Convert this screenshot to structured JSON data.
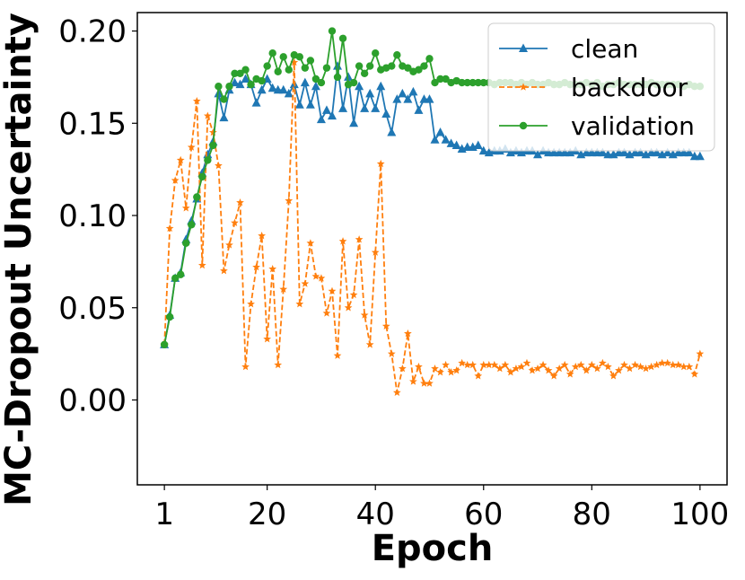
{
  "chart_data": {
    "type": "line",
    "xlabel": "Epoch",
    "ylabel": "MC-Dropout Uncertainty",
    "xlim": [
      -4,
      105
    ],
    "ylim": [
      -0.046,
      0.21
    ],
    "xticks": [
      1,
      20,
      40,
      60,
      80,
      100
    ],
    "xtick_labels": [
      "1",
      "20",
      "40",
      "60",
      "80",
      "100"
    ],
    "yticks": [
      0.0,
      0.05,
      0.1,
      0.15,
      0.2
    ],
    "ytick_labels": [
      "0.00",
      "0.05",
      "0.10",
      "0.15",
      "0.20"
    ],
    "grid": false,
    "legend_position": "upper right",
    "x": [
      1,
      2,
      3,
      4,
      5,
      6,
      7,
      8,
      9,
      10,
      11,
      12,
      13,
      14,
      15,
      16,
      17,
      18,
      19,
      20,
      21,
      22,
      23,
      24,
      25,
      26,
      27,
      28,
      29,
      30,
      31,
      32,
      33,
      34,
      35,
      36,
      37,
      38,
      39,
      40,
      41,
      42,
      43,
      44,
      45,
      46,
      47,
      48,
      49,
      50,
      51,
      52,
      53,
      54,
      55,
      56,
      57,
      58,
      59,
      60,
      61,
      62,
      63,
      64,
      65,
      66,
      67,
      68,
      69,
      70,
      71,
      72,
      73,
      74,
      75,
      76,
      77,
      78,
      79,
      80,
      81,
      82,
      83,
      84,
      85,
      86,
      87,
      88,
      89,
      90,
      91,
      92,
      93,
      94,
      95,
      96,
      97,
      98,
      99,
      100
    ],
    "series": [
      {
        "name": "clean",
        "color": "#1f77b4",
        "marker": "triangle",
        "dash": "solid",
        "values": [
          0.03,
          0.046,
          0.066,
          0.069,
          0.087,
          0.097,
          0.109,
          0.123,
          0.133,
          0.14,
          0.166,
          0.153,
          0.168,
          0.172,
          0.171,
          0.174,
          0.171,
          0.161,
          0.168,
          0.174,
          0.169,
          0.168,
          0.168,
          0.166,
          0.171,
          0.16,
          0.172,
          0.16,
          0.17,
          0.152,
          0.157,
          0.154,
          0.181,
          0.158,
          0.175,
          0.15,
          0.17,
          0.158,
          0.166,
          0.158,
          0.17,
          0.155,
          0.145,
          0.163,
          0.166,
          0.163,
          0.167,
          0.157,
          0.163,
          0.163,
          0.141,
          0.145,
          0.141,
          0.139,
          0.138,
          0.136,
          0.137,
          0.137,
          0.138,
          0.135,
          0.134,
          0.135,
          0.135,
          0.136,
          0.134,
          0.135,
          0.134,
          0.135,
          0.135,
          0.133,
          0.135,
          0.134,
          0.134,
          0.134,
          0.134,
          0.134,
          0.135,
          0.133,
          0.134,
          0.134,
          0.134,
          0.134,
          0.133,
          0.133,
          0.134,
          0.134,
          0.133,
          0.134,
          0.134,
          0.133,
          0.134,
          0.134,
          0.133,
          0.134,
          0.133,
          0.134,
          0.134,
          0.134,
          0.132,
          0.132
        ]
      },
      {
        "name": "backdoor",
        "color": "#ff7f0e",
        "marker": "star",
        "dash": "dashed",
        "values": [
          0.03,
          0.093,
          0.119,
          0.13,
          0.104,
          0.137,
          0.162,
          0.073,
          0.154,
          0.145,
          0.127,
          0.07,
          0.084,
          0.096,
          0.107,
          0.018,
          0.052,
          0.072,
          0.089,
          0.033,
          0.071,
          0.019,
          0.06,
          0.108,
          0.183,
          0.052,
          0.063,
          0.085,
          0.067,
          0.066,
          0.047,
          0.059,
          0.024,
          0.086,
          0.05,
          0.057,
          0.087,
          0.046,
          0.03,
          0.08,
          0.128,
          0.04,
          0.025,
          0.004,
          0.017,
          0.036,
          0.01,
          0.018,
          0.009,
          0.009,
          0.017,
          0.015,
          0.019,
          0.015,
          0.016,
          0.02,
          0.019,
          0.019,
          0.013,
          0.019,
          0.019,
          0.019,
          0.017,
          0.019,
          0.015,
          0.017,
          0.018,
          0.02,
          0.016,
          0.017,
          0.019,
          0.016,
          0.013,
          0.017,
          0.019,
          0.014,
          0.018,
          0.019,
          0.016,
          0.019,
          0.017,
          0.02,
          0.018,
          0.013,
          0.016,
          0.019,
          0.017,
          0.019,
          0.018,
          0.017,
          0.018,
          0.019,
          0.02,
          0.02,
          0.019,
          0.019,
          0.018,
          0.018,
          0.014,
          0.025
        ]
      },
      {
        "name": "validation",
        "color": "#2ca02c",
        "marker": "circle",
        "dash": "solid",
        "values": [
          0.03,
          0.045,
          0.066,
          0.068,
          0.085,
          0.095,
          0.11,
          0.121,
          0.13,
          0.138,
          0.17,
          0.163,
          0.17,
          0.177,
          0.177,
          0.179,
          0.171,
          0.174,
          0.173,
          0.181,
          0.188,
          0.178,
          0.186,
          0.179,
          0.187,
          0.186,
          0.18,
          0.184,
          0.174,
          0.172,
          0.18,
          0.2,
          0.175,
          0.196,
          0.171,
          0.172,
          0.181,
          0.177,
          0.181,
          0.188,
          0.179,
          0.18,
          0.181,
          0.187,
          0.181,
          0.18,
          0.178,
          0.179,
          0.181,
          0.185,
          0.172,
          0.174,
          0.174,
          0.172,
          0.173,
          0.172,
          0.172,
          0.172,
          0.172,
          0.172,
          0.172,
          0.171,
          0.172,
          0.172,
          0.172,
          0.171,
          0.172,
          0.171,
          0.172,
          0.171,
          0.171,
          0.172,
          0.171,
          0.171,
          0.172,
          0.171,
          0.171,
          0.171,
          0.172,
          0.171,
          0.172,
          0.17,
          0.171,
          0.171,
          0.172,
          0.171,
          0.171,
          0.171,
          0.171,
          0.171,
          0.172,
          0.171,
          0.171,
          0.171,
          0.171,
          0.171,
          0.17,
          0.171,
          0.17,
          0.17
        ]
      }
    ]
  }
}
